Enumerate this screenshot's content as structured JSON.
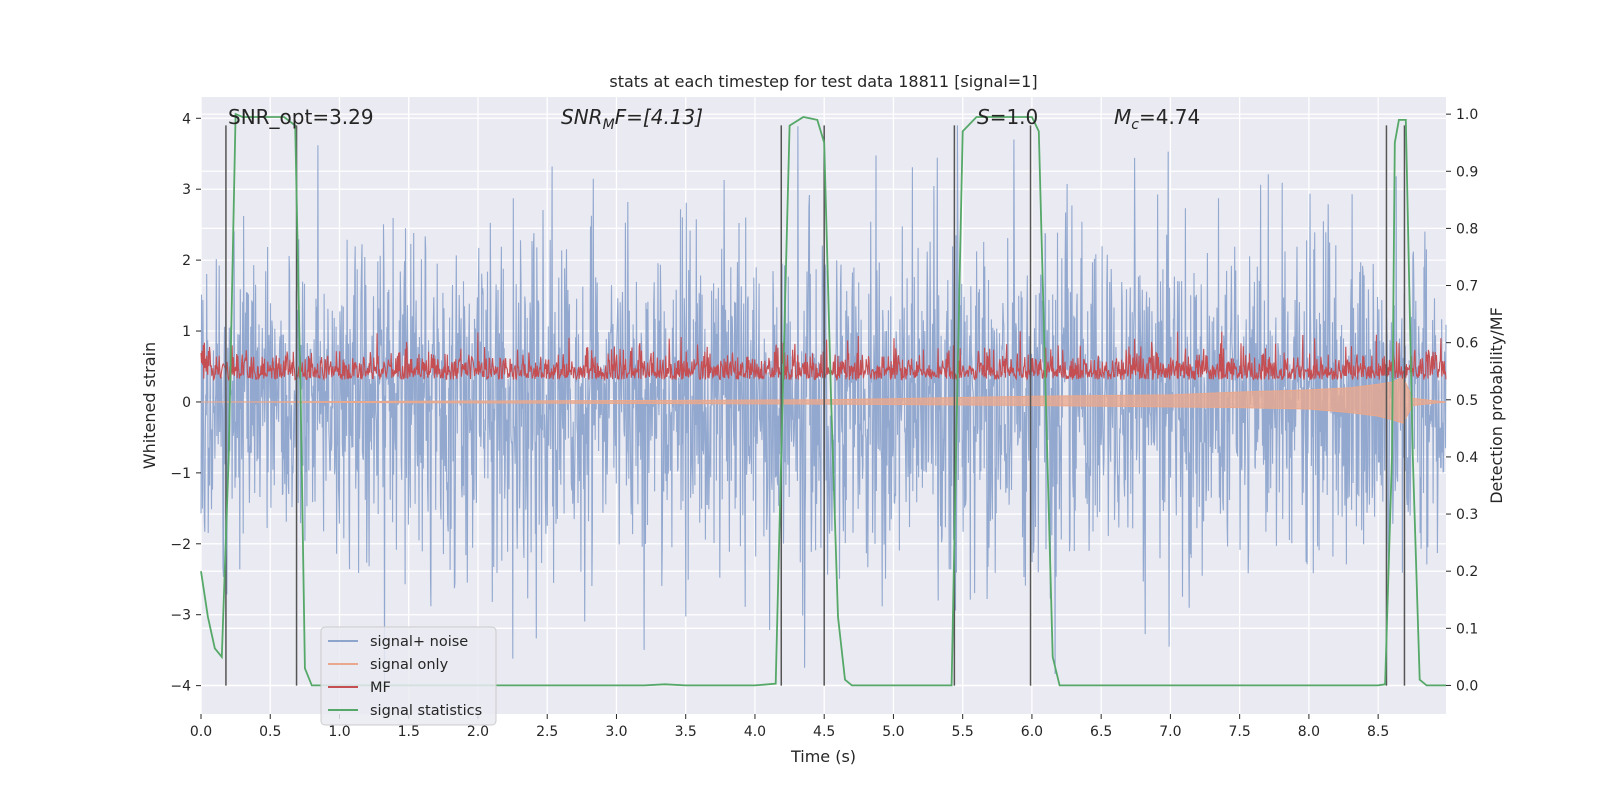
{
  "chart_data": {
    "type": "line",
    "title": "stats at each timestep for test data 18811 [signal=1]",
    "xlabel": "Time (s)",
    "ylabel_left": "Whitened strain",
    "ylabel_right": "Detection probability/MF",
    "xlim": [
      0.0,
      8.99
    ],
    "ylim_left": [
      -4.4,
      4.3
    ],
    "ylim_right": [
      -0.05,
      1.03
    ],
    "x_ticks": [
      "0.0",
      "0.5",
      "1.0",
      "1.5",
      "2.0",
      "2.5",
      "3.0",
      "3.5",
      "4.0",
      "4.5",
      "5.0",
      "5.5",
      "6.0",
      "6.5",
      "7.0",
      "7.5",
      "8.0",
      "8.5"
    ],
    "y_ticks_left": [
      "4",
      "3",
      "2",
      "1",
      "0",
      "−1",
      "−2",
      "−3",
      "−4"
    ],
    "y_ticks_left_values": [
      4,
      3,
      2,
      1,
      0,
      -1,
      -2,
      -3,
      -4
    ],
    "y_ticks_right": [
      "1.0",
      "0.9",
      "0.8",
      "0.7",
      "0.6",
      "0.5",
      "0.4",
      "0.3",
      "0.2",
      "0.1",
      "0.0"
    ],
    "y_ticks_right_values": [
      1.0,
      0.9,
      0.8,
      0.7,
      0.6,
      0.5,
      0.4,
      0.3,
      0.2,
      0.1,
      0.0
    ],
    "grid": true,
    "legend_position": "lower-left",
    "annotations": {
      "snr_opt": "SNR_opt=3.29",
      "snr_mf_prefix": "SNR",
      "snr_mf_sub": "M",
      "snr_mf_suffix": "F=[4.13]",
      "s_prefix": "S",
      "s_suffix": "=1.0",
      "mc_prefix": "M",
      "mc_sub": "c",
      "mc_suffix": "=4.74"
    },
    "series": [
      {
        "name": "signal+ noise",
        "axis": "left",
        "color": "#8da4cc",
        "description_values": "dense noise roughly between -4 and 4",
        "envelope_typical_high": 2.0,
        "envelope_typical_low": -2.2,
        "peak_high": 3.9,
        "peak_low": -4.0
      },
      {
        "name": "signal only",
        "axis": "left",
        "color": "#e9a88d",
        "x": [
          0.0,
          4.5,
          6.0,
          7.0,
          7.5,
          8.0,
          8.3,
          8.5,
          8.6,
          8.68,
          8.75,
          8.99
        ],
        "upper": [
          0.0,
          0.03,
          0.08,
          0.1,
          0.14,
          0.17,
          0.2,
          0.25,
          0.28,
          0.35,
          0.05,
          0.0
        ],
        "lower": [
          0.0,
          -0.03,
          -0.05,
          -0.07,
          -0.08,
          -0.1,
          -0.15,
          -0.2,
          -0.25,
          -0.3,
          -0.05,
          0.0
        ]
      },
      {
        "name": "MF",
        "axis": "right",
        "color": "#c44e52",
        "typical_low": 0.5,
        "typical_high": 0.6,
        "peak": 0.62
      },
      {
        "name": "signal statistics",
        "axis": "right",
        "color": "#55a868",
        "x": [
          0.0,
          0.05,
          0.1,
          0.15,
          0.2,
          0.25,
          0.3,
          0.4,
          0.5,
          0.6,
          0.68,
          0.72,
          0.75,
          0.8,
          0.85,
          1.0,
          1.5,
          2.0,
          2.5,
          3.0,
          3.2,
          3.35,
          3.5,
          4.0,
          4.15,
          4.2,
          4.25,
          4.35,
          4.45,
          4.5,
          4.55,
          4.6,
          4.65,
          4.7,
          5.0,
          5.2,
          5.42,
          5.46,
          5.5,
          5.6,
          5.8,
          6.0,
          6.05,
          6.1,
          6.15,
          6.2,
          6.3,
          6.6,
          7.0,
          7.5,
          8.0,
          8.3,
          8.5,
          8.55,
          8.6,
          8.62,
          8.65,
          8.7,
          8.75,
          8.8,
          8.85,
          8.9,
          8.99
        ],
        "y": [
          0.2,
          0.12,
          0.065,
          0.05,
          0.4,
          1.0,
          0.995,
          0.995,
          0.995,
          0.995,
          0.98,
          0.5,
          0.03,
          0.0,
          0.0,
          0.0,
          0.0,
          0.0,
          0.0,
          0.0,
          0.0,
          0.002,
          0.0,
          0.0,
          0.003,
          0.5,
          0.98,
          0.995,
          0.99,
          0.95,
          0.5,
          0.12,
          0.01,
          0.0,
          0.0,
          0.0,
          0.0,
          0.5,
          0.97,
          0.995,
          0.995,
          0.995,
          0.97,
          0.5,
          0.05,
          0.0,
          0.0,
          0.0,
          0.0,
          0.0,
          0.0,
          0.0,
          0.0,
          0.002,
          0.4,
          0.95,
          0.99,
          0.99,
          0.4,
          0.01,
          0.0,
          0.0,
          0.0
        ]
      }
    ],
    "vertical_lines_x": [
      0.18,
      0.69,
      4.19,
      4.5,
      5.44,
      5.99,
      8.56,
      8.69
    ],
    "vertical_lines_top_value": 3.9,
    "vertical_lines_bottom_value": -4.0
  }
}
